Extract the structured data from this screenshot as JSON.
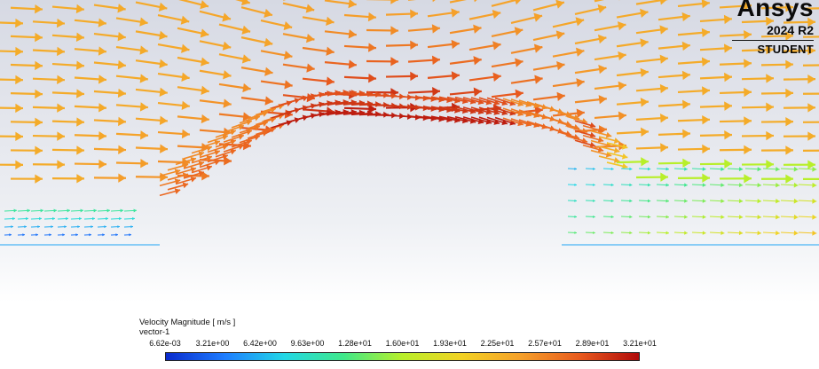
{
  "brand": {
    "name": "Ansys",
    "version": "2024 R2",
    "edition": "STUDENT"
  },
  "legend": {
    "title": "Velocity Magnitude [ m/s ]",
    "subtitle": "vector-1",
    "ticks": [
      "6.62e-03",
      "3.21e+00",
      "6.42e+00",
      "9.63e+00",
      "1.28e+01",
      "1.60e+01",
      "1.93e+01",
      "2.25e+01",
      "2.57e+01",
      "2.89e+01",
      "3.21e+01"
    ],
    "min_value": 0.00662,
    "max_value": 32.1,
    "colormap": [
      "#0a2acc",
      "#1e7dff",
      "#22d7e6",
      "#3fe88a",
      "#b8ef2a",
      "#f2d224",
      "#f5a02a",
      "#e85a1e",
      "#b00a0a"
    ]
  }
}
